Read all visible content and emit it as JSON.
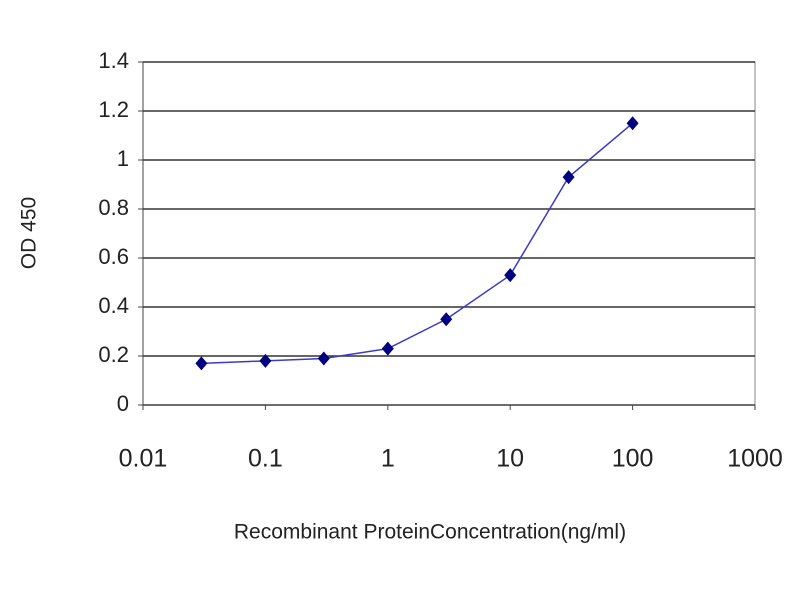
{
  "chart_data": {
    "type": "line",
    "xlabel": "Recombinant ProteinConcentration(ng/ml)",
    "ylabel": "OD 450",
    "x": [
      0.03,
      0.1,
      0.3,
      1,
      3,
      10,
      30,
      100
    ],
    "series": [
      {
        "color": "#000080",
        "values": [
          0.17,
          0.18,
          0.19,
          0.23,
          0.35,
          0.53,
          0.93,
          1.15
        ]
      }
    ],
    "xscale": "log",
    "xlim": [
      0.01,
      1000
    ],
    "xticks": [
      0.01,
      0.1,
      1,
      10,
      100,
      1000
    ],
    "ylim": [
      0,
      1.4
    ],
    "yticks": [
      0,
      0.2,
      0.4,
      0.6,
      0.8,
      1,
      1.2,
      1.4
    ],
    "grid": true
  }
}
